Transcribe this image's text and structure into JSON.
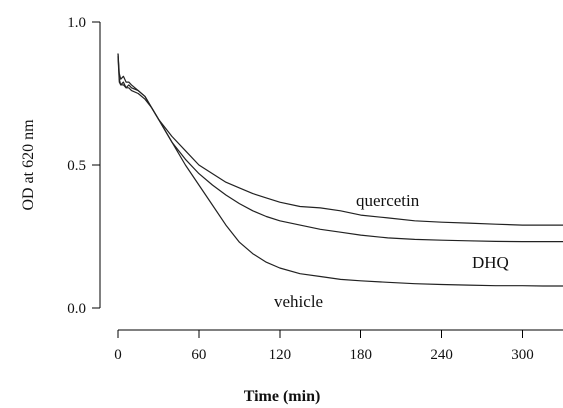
{
  "chart_data": {
    "type": "line",
    "title": "",
    "xlabel": "Time (min)",
    "ylabel": "OD at 620 nm",
    "xlim": [
      0,
      330
    ],
    "ylim": [
      0.0,
      1.0
    ],
    "x_ticks": [
      0,
      60,
      120,
      180,
      240,
      300
    ],
    "y_ticks": [
      0.0,
      0.5,
      1.0
    ],
    "x_tick_labels": [
      "0",
      "60",
      "120",
      "180",
      "240",
      "300"
    ],
    "y_tick_labels": [
      "0.0",
      "0.5",
      "1.0"
    ],
    "grid": false,
    "legend": "none",
    "series": [
      {
        "name": "quercetin",
        "x": [
          0,
          1,
          2,
          4,
          6,
          8,
          10,
          15,
          20,
          25,
          30,
          40,
          50,
          60,
          70,
          80,
          90,
          100,
          110,
          120,
          135,
          150,
          165,
          180,
          200,
          220,
          240,
          260,
          280,
          300,
          315,
          330
        ],
        "y": [
          0.89,
          0.82,
          0.8,
          0.81,
          0.79,
          0.79,
          0.78,
          0.76,
          0.74,
          0.7,
          0.66,
          0.6,
          0.55,
          0.5,
          0.47,
          0.44,
          0.42,
          0.4,
          0.385,
          0.37,
          0.355,
          0.35,
          0.34,
          0.325,
          0.315,
          0.305,
          0.3,
          0.297,
          0.293,
          0.29,
          0.29,
          0.29
        ]
      },
      {
        "name": "DHQ",
        "x": [
          0,
          1,
          2,
          4,
          6,
          8,
          10,
          15,
          20,
          25,
          30,
          40,
          50,
          60,
          70,
          80,
          90,
          100,
          110,
          120,
          135,
          150,
          165,
          180,
          200,
          220,
          240,
          260,
          280,
          300,
          315,
          330
        ],
        "y": [
          0.89,
          0.8,
          0.78,
          0.79,
          0.77,
          0.78,
          0.77,
          0.76,
          0.74,
          0.7,
          0.66,
          0.58,
          0.52,
          0.47,
          0.43,
          0.395,
          0.365,
          0.34,
          0.32,
          0.305,
          0.29,
          0.275,
          0.265,
          0.255,
          0.245,
          0.24,
          0.237,
          0.235,
          0.233,
          0.232,
          0.232,
          0.232
        ]
      },
      {
        "name": "vehicle",
        "x": [
          0,
          1,
          2,
          4,
          6,
          8,
          10,
          15,
          20,
          25,
          30,
          40,
          50,
          60,
          70,
          80,
          90,
          100,
          110,
          120,
          135,
          150,
          165,
          180,
          200,
          220,
          240,
          260,
          280,
          300,
          315,
          330
        ],
        "y": [
          0.88,
          0.79,
          0.78,
          0.78,
          0.77,
          0.77,
          0.76,
          0.75,
          0.73,
          0.7,
          0.66,
          0.58,
          0.5,
          0.43,
          0.36,
          0.29,
          0.23,
          0.19,
          0.16,
          0.14,
          0.12,
          0.11,
          0.1,
          0.095,
          0.09,
          0.085,
          0.082,
          0.08,
          0.078,
          0.078,
          0.077,
          0.077
        ]
      }
    ],
    "annotations": [
      {
        "text": "quercetin",
        "series": "quercetin"
      },
      {
        "text": "DHQ",
        "series": "DHQ"
      },
      {
        "text": "vehicle",
        "series": "vehicle"
      }
    ]
  }
}
